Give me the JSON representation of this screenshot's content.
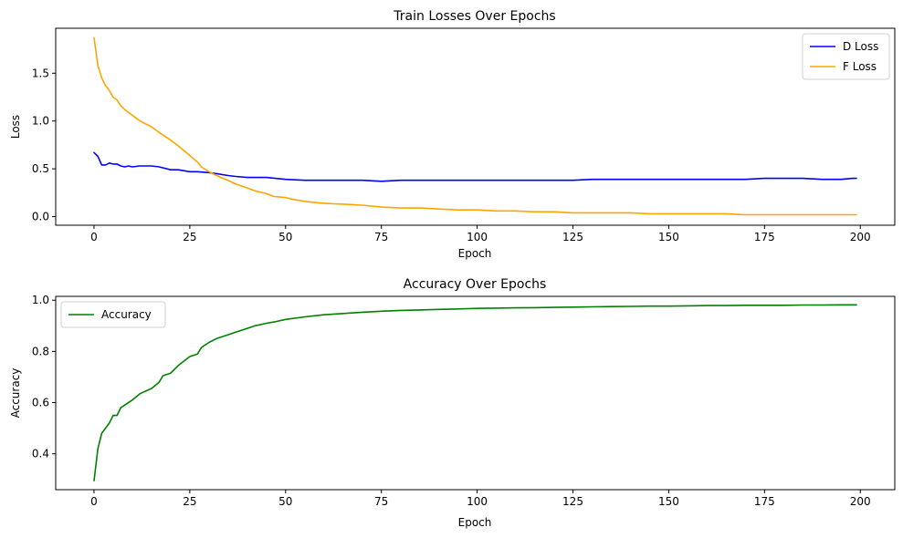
{
  "chart_data": [
    {
      "type": "line",
      "title": "Train Losses Over Epochs",
      "xlabel": "Epoch",
      "ylabel": "Loss",
      "xlim": [
        -10,
        209
      ],
      "ylim": [
        -0.09,
        1.97
      ],
      "xticks": [
        0,
        25,
        50,
        75,
        100,
        125,
        150,
        175,
        200
      ],
      "yticks": [
        0.0,
        0.5,
        1.0,
        1.5
      ],
      "ytick_labels": [
        "0.0",
        "0.5",
        "1.0",
        "1.5"
      ],
      "grid": false,
      "legend": "top-right",
      "series": [
        {
          "name": "D Loss",
          "color": "#0000ff",
          "x": [
            0,
            1,
            2,
            3,
            4,
            5,
            6,
            7,
            8,
            9,
            10,
            12,
            15,
            17,
            20,
            22,
            25,
            27,
            30,
            32,
            35,
            37,
            40,
            45,
            50,
            55,
            60,
            65,
            70,
            75,
            80,
            85,
            90,
            95,
            100,
            105,
            110,
            115,
            120,
            125,
            130,
            135,
            140,
            145,
            150,
            155,
            160,
            165,
            170,
            175,
            180,
            185,
            190,
            195,
            198,
            199
          ],
          "y": [
            0.67,
            0.63,
            0.54,
            0.54,
            0.56,
            0.55,
            0.55,
            0.53,
            0.52,
            0.53,
            0.52,
            0.53,
            0.53,
            0.52,
            0.49,
            0.49,
            0.47,
            0.47,
            0.46,
            0.45,
            0.43,
            0.42,
            0.41,
            0.41,
            0.39,
            0.38,
            0.38,
            0.38,
            0.38,
            0.37,
            0.38,
            0.38,
            0.38,
            0.38,
            0.38,
            0.38,
            0.38,
            0.38,
            0.38,
            0.38,
            0.39,
            0.39,
            0.39,
            0.39,
            0.39,
            0.39,
            0.39,
            0.39,
            0.39,
            0.4,
            0.4,
            0.4,
            0.39,
            0.39,
            0.4,
            0.4
          ]
        },
        {
          "name": "F Loss",
          "color": "#ffa500",
          "x": [
            0,
            1,
            2,
            3,
            4,
            5,
            6,
            7,
            8,
            10,
            12,
            15,
            17,
            20,
            22,
            25,
            27,
            28,
            30,
            32,
            35,
            37,
            40,
            42,
            45,
            47,
            50,
            52,
            55,
            57,
            60,
            65,
            70,
            75,
            80,
            85,
            90,
            95,
            100,
            105,
            110,
            115,
            120,
            125,
            130,
            135,
            140,
            145,
            150,
            155,
            160,
            165,
            170,
            175,
            180,
            185,
            190,
            195,
            199
          ],
          "y": [
            1.87,
            1.58,
            1.45,
            1.37,
            1.32,
            1.25,
            1.22,
            1.16,
            1.12,
            1.06,
            1.0,
            0.94,
            0.88,
            0.8,
            0.74,
            0.64,
            0.57,
            0.52,
            0.47,
            0.43,
            0.38,
            0.34,
            0.3,
            0.27,
            0.24,
            0.21,
            0.2,
            0.18,
            0.16,
            0.15,
            0.14,
            0.13,
            0.12,
            0.1,
            0.09,
            0.09,
            0.08,
            0.07,
            0.07,
            0.06,
            0.06,
            0.05,
            0.05,
            0.04,
            0.04,
            0.04,
            0.04,
            0.03,
            0.03,
            0.03,
            0.03,
            0.03,
            0.02,
            0.02,
            0.02,
            0.02,
            0.02,
            0.02,
            0.02
          ]
        }
      ]
    },
    {
      "type": "line",
      "title": "Accuracy Over Epochs",
      "xlabel": "Epoch",
      "ylabel": "Accuracy",
      "xlim": [
        -10,
        209
      ],
      "ylim": [
        0.26,
        1.015
      ],
      "xticks": [
        0,
        25,
        50,
        75,
        100,
        125,
        150,
        175,
        200
      ],
      "yticks": [
        0.4,
        0.6,
        0.8,
        1.0
      ],
      "ytick_labels": [
        "0.4",
        "0.6",
        "0.8",
        "1.0"
      ],
      "grid": false,
      "legend": "top-left",
      "series": [
        {
          "name": "Accuracy",
          "color": "#008000",
          "x": [
            0,
            1,
            2,
            3,
            4,
            5,
            6,
            7,
            8,
            10,
            12,
            15,
            17,
            18,
            20,
            22,
            25,
            27,
            28,
            30,
            32,
            35,
            37,
            40,
            42,
            45,
            47,
            50,
            55,
            60,
            65,
            70,
            75,
            80,
            85,
            90,
            95,
            100,
            105,
            110,
            115,
            120,
            125,
            130,
            135,
            140,
            145,
            150,
            155,
            160,
            165,
            170,
            175,
            180,
            185,
            190,
            195,
            199
          ],
          "y": [
            0.295,
            0.42,
            0.48,
            0.5,
            0.52,
            0.55,
            0.55,
            0.58,
            0.59,
            0.61,
            0.635,
            0.655,
            0.68,
            0.705,
            0.715,
            0.745,
            0.78,
            0.79,
            0.815,
            0.835,
            0.85,
            0.865,
            0.875,
            0.89,
            0.9,
            0.91,
            0.915,
            0.925,
            0.935,
            0.943,
            0.948,
            0.953,
            0.957,
            0.96,
            0.962,
            0.964,
            0.966,
            0.968,
            0.969,
            0.97,
            0.971,
            0.972,
            0.973,
            0.974,
            0.975,
            0.976,
            0.977,
            0.977,
            0.978,
            0.979,
            0.979,
            0.98,
            0.98,
            0.98,
            0.981,
            0.981,
            0.982,
            0.982
          ]
        }
      ]
    }
  ]
}
